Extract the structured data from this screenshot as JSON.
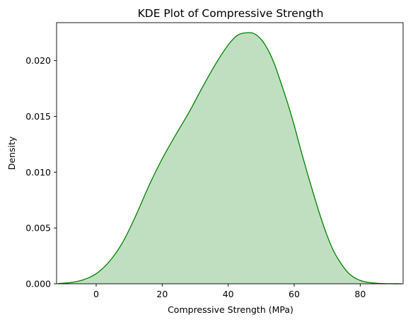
{
  "chart_data": {
    "type": "area",
    "title": "KDE Plot of Compressive Strength",
    "xlabel": "Compressive Strength (MPa)",
    "ylabel": "Density",
    "xlim": [
      -12,
      93
    ],
    "ylim": [
      0,
      0.0234
    ],
    "x_ticks": [
      {
        "value": 0,
        "label": "0"
      },
      {
        "value": 20,
        "label": "20"
      },
      {
        "value": 40,
        "label": "40"
      },
      {
        "value": 60,
        "label": "60"
      },
      {
        "value": 80,
        "label": "80"
      }
    ],
    "y_ticks": [
      {
        "value": 0.0,
        "label": "0.000"
      },
      {
        "value": 0.005,
        "label": "0.005"
      },
      {
        "value": 0.01,
        "label": "0.010"
      },
      {
        "value": 0.015,
        "label": "0.015"
      },
      {
        "value": 0.02,
        "label": "0.020"
      }
    ],
    "grid": false,
    "series": [
      {
        "line_color": "#008000",
        "fill_color": "#c0dfc0",
        "x": [
          -11.5,
          -8,
          -4,
          0,
          4,
          8,
          12,
          16,
          20,
          24,
          28,
          32,
          36,
          40,
          43,
          46,
          48,
          50,
          52,
          54,
          56,
          58,
          60,
          62,
          64,
          66,
          68,
          70,
          72,
          74,
          76,
          78,
          80,
          82,
          84,
          86,
          88,
          90,
          92.5
        ],
        "y": [
          3e-05,
          0.0001,
          0.00035,
          0.0009,
          0.002,
          0.0037,
          0.0061,
          0.0088,
          0.0112,
          0.0133,
          0.0153,
          0.0175,
          0.0196,
          0.0214,
          0.0223,
          0.0225,
          0.0224,
          0.0219,
          0.021,
          0.0197,
          0.018,
          0.0162,
          0.0142,
          0.012,
          0.0099,
          0.0079,
          0.006,
          0.0043,
          0.0029,
          0.0019,
          0.0011,
          0.0006,
          0.0003,
          0.00015,
          7e-05,
          3e-05,
          1e-05,
          5e-06,
          1e-06
        ]
      }
    ]
  }
}
